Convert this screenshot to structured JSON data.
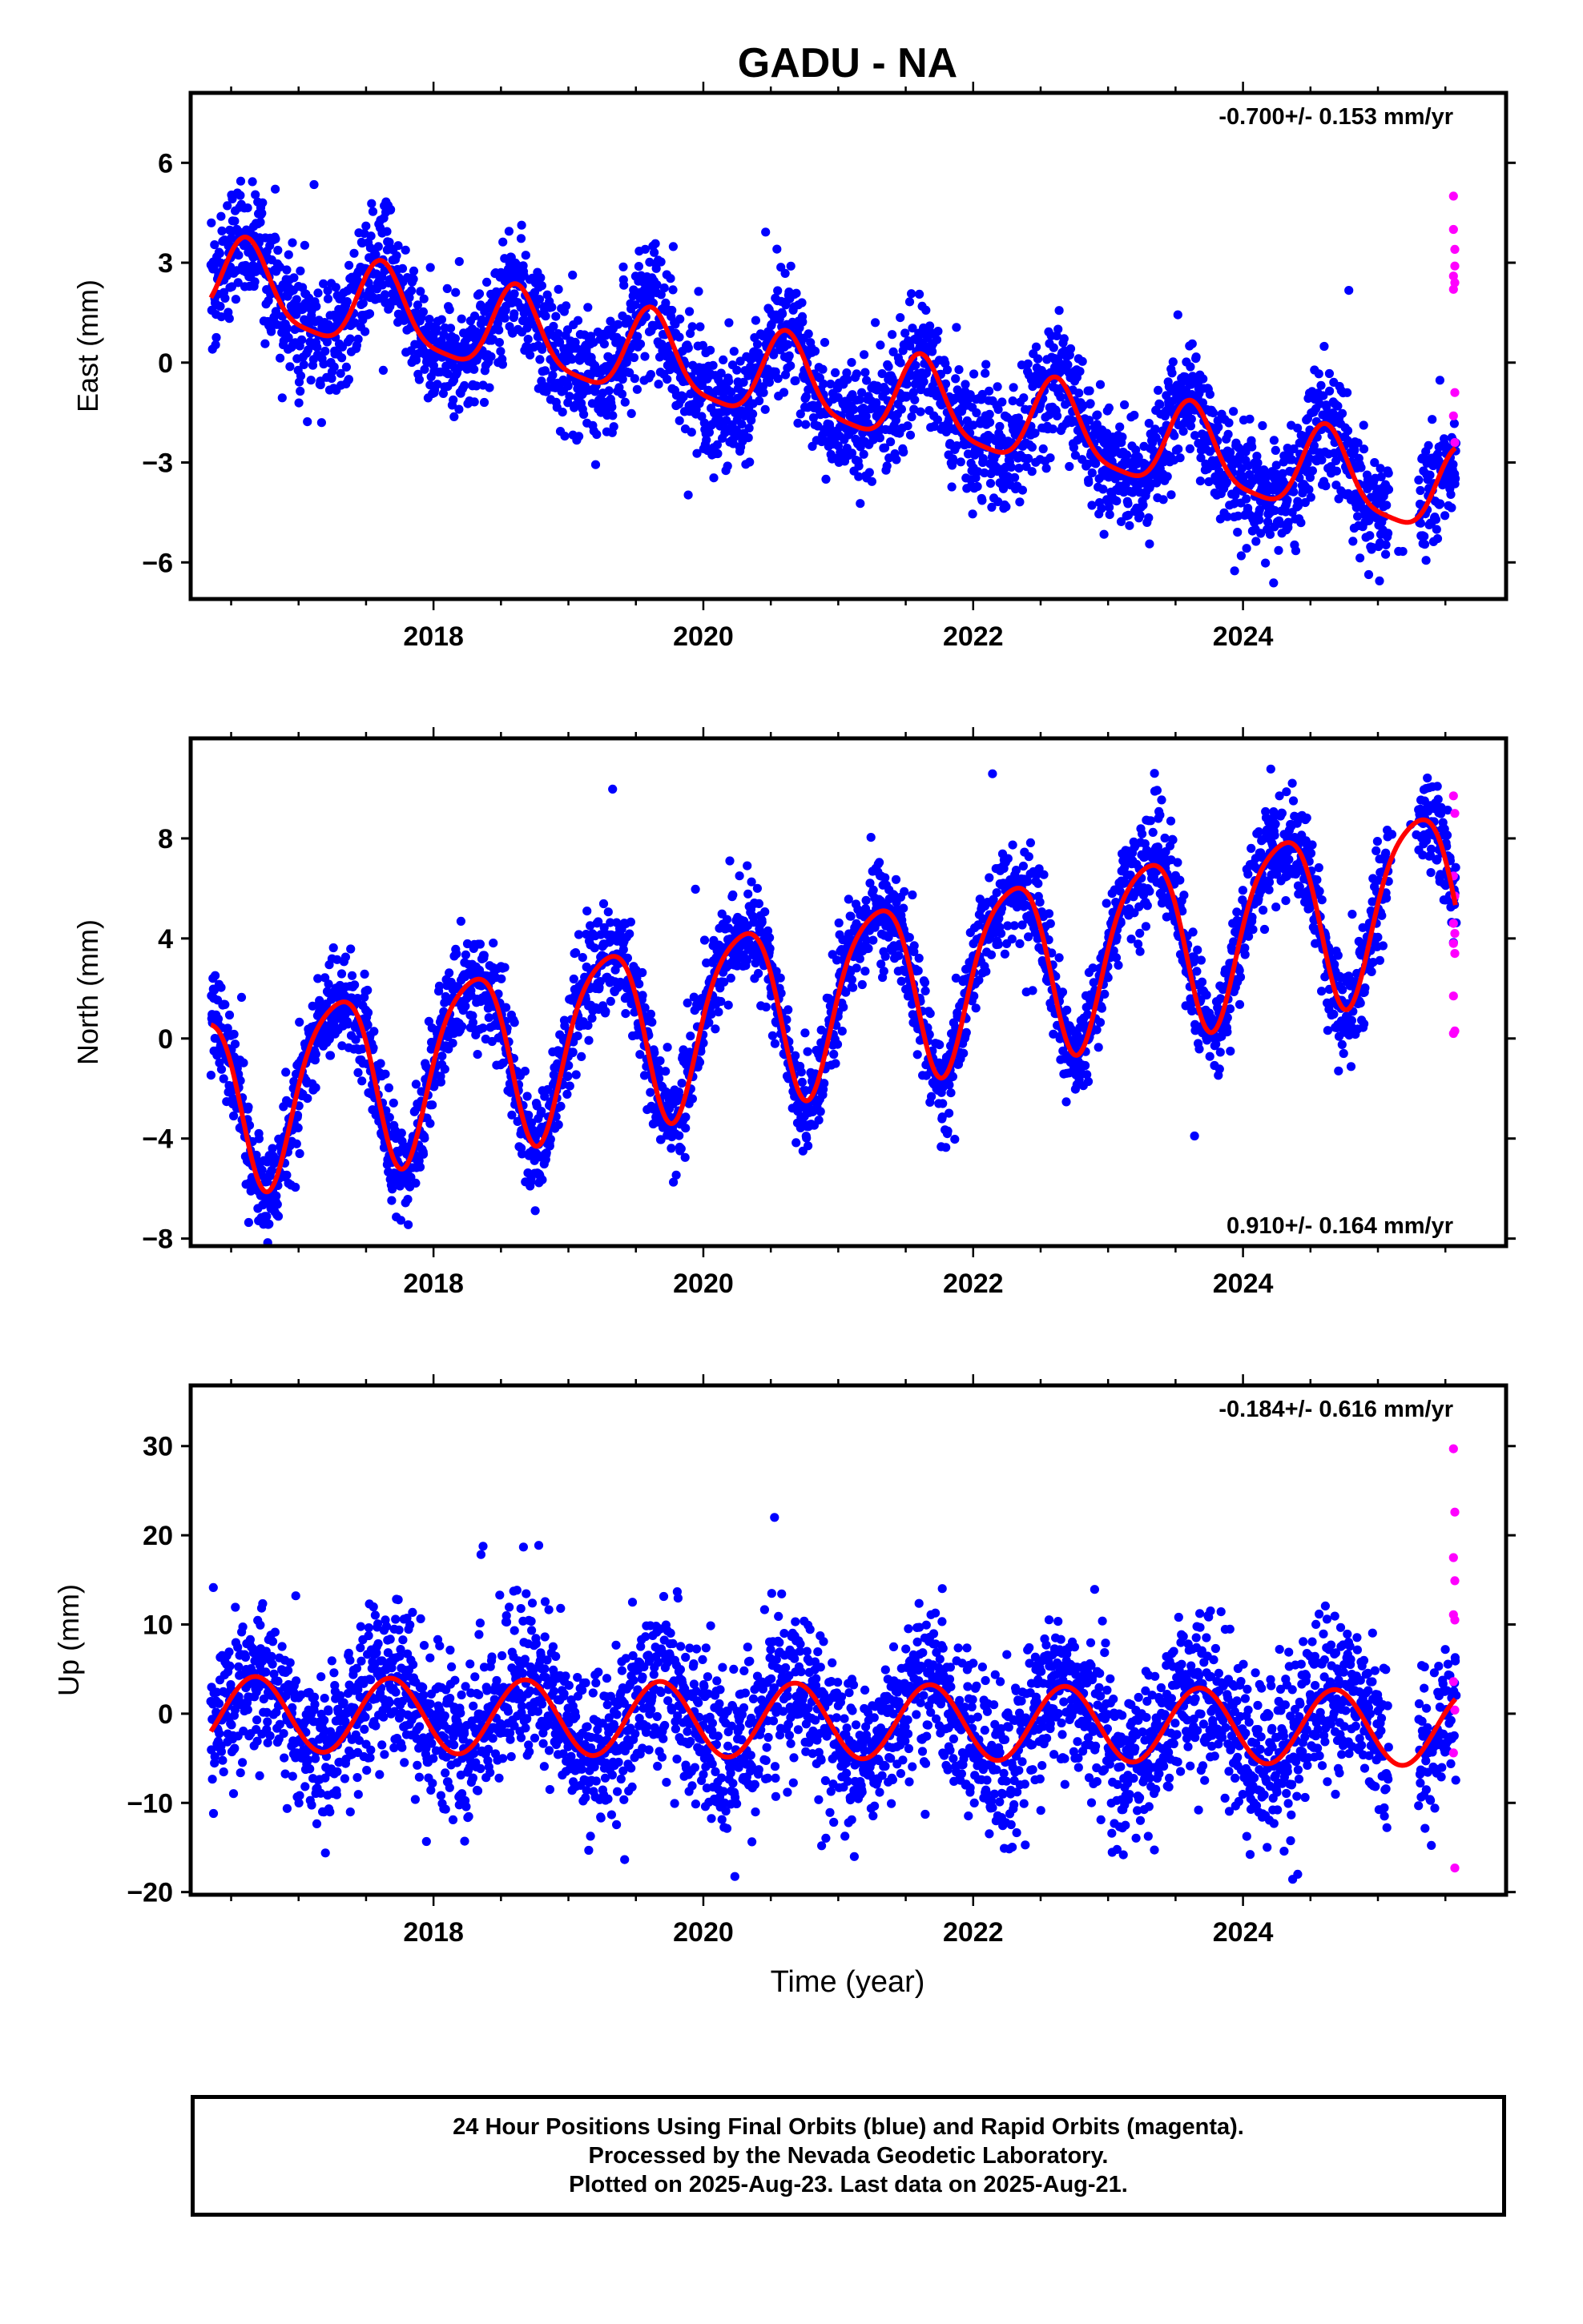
{
  "title": "GADU - NA",
  "xlabel": "Time (year)",
  "colors": {
    "final": "#0000ff",
    "rapid": "#ff00ff",
    "model": "#ff0000",
    "frame": "#000000"
  },
  "footer": {
    "line1": "24 Hour Positions Using Final Orbits (blue) and Rapid Orbits (magenta).",
    "line2": "Processed by the Nevada Geodetic Laboratory.",
    "line3": "Plotted on 2025-Aug-23. Last data on 2025-Aug-21."
  },
  "chart_data": [
    {
      "type": "scatter",
      "component": "east",
      "ylabel": "East (mm)",
      "rate_label": "-0.700+/- 0.153 mm/yr",
      "rate_position": "top-right",
      "xlim": [
        2016.2,
        2025.95
      ],
      "ylim": [
        -7.1,
        8.1
      ],
      "yticks": [
        -6,
        -3,
        0,
        3,
        6
      ],
      "xticks": [
        2018,
        2020,
        2022,
        2024
      ],
      "model": {
        "trend_mm_per_yr": -0.7,
        "offset_mm": 2.3,
        "start_year": 2016.5,
        "amp_annual_mm": 1.25,
        "phase_annual_year": 0.62,
        "amp_semiannual_mm": 0.3,
        "phase_semiannual_year": 0.1,
        "noise_mm": 0.9
      },
      "series": [
        {
          "name": "Final Orbits (blue)",
          "x_range": [
            2016.35,
            2025.58
          ],
          "points": 3200
        },
        {
          "name": "Rapid Orbits (magenta)",
          "values": [
            [
              2025.56,
              5.0
            ],
            [
              2025.56,
              4.0
            ],
            [
              2025.57,
              3.4
            ],
            [
              2025.57,
              2.9
            ],
            [
              2025.56,
              2.6
            ],
            [
              2025.57,
              2.4
            ],
            [
              2025.56,
              2.2
            ],
            [
              2025.57,
              -0.9
            ],
            [
              2025.56,
              -1.6
            ],
            [
              2025.57,
              -2.4
            ]
          ]
        }
      ]
    },
    {
      "type": "scatter",
      "component": "north",
      "ylabel": "North (mm)",
      "rate_label": "0.910+/- 0.164 mm/yr",
      "rate_position": "bottom-right",
      "xlim": [
        2016.2,
        2025.95
      ],
      "ylim": [
        -8.3,
        12.0
      ],
      "yticks": [
        -8,
        -4,
        0,
        4,
        8
      ],
      "xticks": [
        2018,
        2020,
        2022,
        2024
      ],
      "model": {
        "trend_mm_per_yr": 0.91,
        "offset_mm": -2.3,
        "start_year": 2016.5,
        "amp_annual_mm": 3.5,
        "phase_annual_year": 0.28,
        "amp_semiannual_mm": 0.6,
        "phase_semiannual_year": 0.0,
        "noise_mm": 1.0
      },
      "series": [
        {
          "name": "Final Orbits (blue)",
          "x_range": [
            2016.35,
            2025.58
          ],
          "points": 3200
        },
        {
          "name": "Rapid Orbits (magenta)",
          "values": [
            [
              2025.56,
              9.7
            ],
            [
              2025.57,
              9.0
            ],
            [
              2025.56,
              6.5
            ],
            [
              2025.57,
              5.7
            ],
            [
              2025.56,
              4.6
            ],
            [
              2025.57,
              4.2
            ],
            [
              2025.56,
              3.8
            ],
            [
              2025.57,
              3.4
            ],
            [
              2025.56,
              1.7
            ],
            [
              2025.57,
              0.3
            ],
            [
              2025.56,
              0.2
            ]
          ]
        }
      ]
    },
    {
      "type": "scatter",
      "component": "up",
      "ylabel": "Up (mm)",
      "rate_label": "-0.184+/- 0.616 mm/yr",
      "rate_position": "top-right",
      "xlim": [
        2016.2,
        2025.95
      ],
      "ylim": [
        -20.3,
        36.8
      ],
      "yticks": [
        -20,
        -10,
        0,
        10,
        20,
        30
      ],
      "xticks": [
        2018,
        2020,
        2022,
        2024
      ],
      "model": {
        "trend_mm_per_yr": -0.184,
        "offset_mm": 0.0,
        "start_year": 2016.5,
        "amp_annual_mm": 4.2,
        "phase_annual_year": 0.68,
        "amp_semiannual_mm": 0.0,
        "phase_semiannual_year": 0.0,
        "noise_mm": 4.5
      },
      "series": [
        {
          "name": "Final Orbits (blue)",
          "x_range": [
            2016.35,
            2025.58
          ],
          "points": 3200
        },
        {
          "name": "Rapid Orbits (magenta)",
          "values": [
            [
              2025.56,
              29.7
            ],
            [
              2025.57,
              22.6
            ],
            [
              2025.56,
              17.5
            ],
            [
              2025.57,
              14.9
            ],
            [
              2025.56,
              11.1
            ],
            [
              2025.57,
              10.5
            ],
            [
              2025.56,
              3.6
            ],
            [
              2025.57,
              0.4
            ],
            [
              2025.56,
              -4.4
            ],
            [
              2025.57,
              -17.3
            ]
          ]
        }
      ]
    }
  ]
}
